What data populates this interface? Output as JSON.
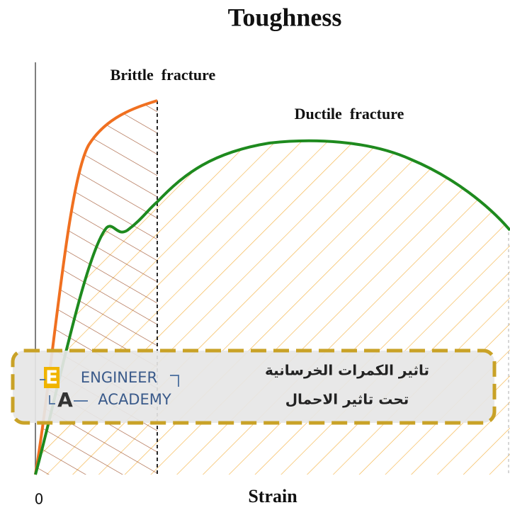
{
  "title": "Toughness",
  "labels": {
    "brittle": "Brittle  fracture",
    "ductile": "Ductile  fracture"
  },
  "axis": {
    "x_label": "Strain",
    "origin": "0"
  },
  "watermark": {
    "logo_top": "E",
    "logo_bottom": "A",
    "name_1": "ENGINEER",
    "name_2": "ACADEMY",
    "caption_1": "تاثير الكمرات الخرسانية",
    "caption_2": "تحت تاثير الاحمال"
  }
}
